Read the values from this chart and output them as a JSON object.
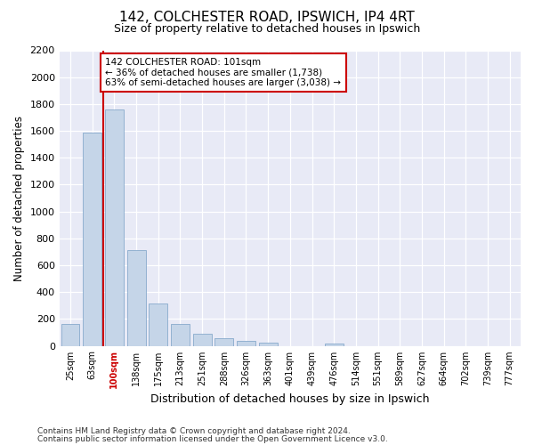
{
  "title_line1": "142, COLCHESTER ROAD, IPSWICH, IP4 4RT",
  "title_line2": "Size of property relative to detached houses in Ipswich",
  "xlabel": "Distribution of detached houses by size in Ipswich",
  "ylabel": "Number of detached properties",
  "footnote_line1": "Contains HM Land Registry data © Crown copyright and database right 2024.",
  "footnote_line2": "Contains public sector information licensed under the Open Government Licence v3.0.",
  "categories": [
    "25sqm",
    "63sqm",
    "100sqm",
    "138sqm",
    "175sqm",
    "213sqm",
    "251sqm",
    "288sqm",
    "326sqm",
    "363sqm",
    "401sqm",
    "439sqm",
    "476sqm",
    "514sqm",
    "551sqm",
    "589sqm",
    "627sqm",
    "664sqm",
    "702sqm",
    "739sqm",
    "777sqm"
  ],
  "values": [
    160,
    1590,
    1760,
    710,
    315,
    160,
    90,
    55,
    35,
    25,
    0,
    0,
    20,
    0,
    0,
    0,
    0,
    0,
    0,
    0,
    0
  ],
  "bar_color": "#c5d5e8",
  "bar_edge_color": "#88aacc",
  "vline_color": "#cc0000",
  "annotation_box_edgecolor": "#cc0000",
  "background_color": "#e8eaf6",
  "grid_color": "#ffffff",
  "ylim": [
    0,
    2200
  ],
  "yticks": [
    0,
    200,
    400,
    600,
    800,
    1000,
    1200,
    1400,
    1600,
    1800,
    2000,
    2200
  ],
  "vline_bar_index": 2,
  "highlight_tick_index": 2,
  "annot_line1": "142 COLCHESTER ROAD: 101sqm",
  "annot_line2": "← 36% of detached houses are smaller (1,738)",
  "annot_line3": "63% of semi-detached houses are larger (3,038) →"
}
